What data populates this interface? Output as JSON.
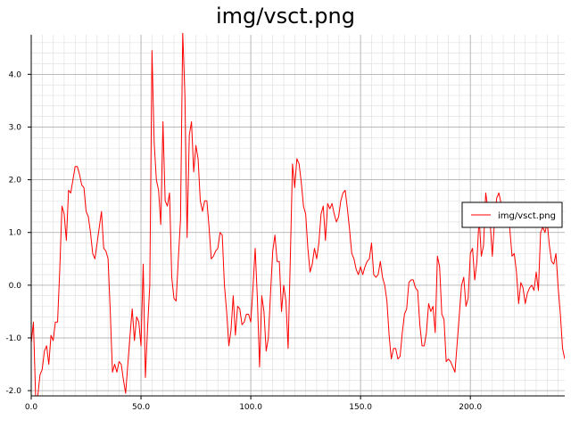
{
  "chart_data": {
    "type": "line",
    "title": "img/vsct.png",
    "xlabel": "",
    "ylabel": "",
    "xlim": [
      0,
      243
    ],
    "ylim": [
      -2.1,
      4.75
    ],
    "x_ticks": [
      0,
      50,
      100,
      150,
      200
    ],
    "x_tick_labels": [
      "0.0",
      "50.0",
      "100.0",
      "150.0",
      "200.0"
    ],
    "y_ticks": [
      -2,
      -1,
      0,
      1,
      2,
      3,
      4
    ],
    "y_tick_labels": [
      "-2.0",
      "-1.0",
      "0.0",
      "1.0",
      "2.0",
      "3.0",
      "4.0"
    ],
    "grid": true,
    "legend_position": "right",
    "series": [
      {
        "name": "img/vsct.png",
        "color": "#ff0000",
        "x_start": 0,
        "x_step": 1,
        "values": [
          -1.1,
          -0.7,
          -2.1,
          -2.1,
          -1.7,
          -1.6,
          -1.25,
          -1.15,
          -1.5,
          -0.95,
          -1.05,
          -0.7,
          -0.7,
          0.3,
          1.5,
          1.35,
          0.85,
          1.8,
          1.75,
          2.0,
          2.25,
          2.25,
          2.1,
          1.9,
          1.85,
          1.4,
          1.3,
          1.0,
          0.6,
          0.5,
          0.8,
          1.1,
          1.4,
          0.7,
          0.65,
          0.5,
          -0.5,
          -1.65,
          -1.5,
          -1.65,
          -1.45,
          -1.5,
          -1.8,
          -2.05,
          -1.5,
          -0.95,
          -0.45,
          -1.05,
          -0.6,
          -0.7,
          -1.15,
          0.4,
          -1.75,
          -0.8,
          0.0,
          4.45,
          2.7,
          2.0,
          1.8,
          1.15,
          3.1,
          1.6,
          1.5,
          1.75,
          0.15,
          -0.25,
          -0.3,
          0.5,
          1.25,
          4.8,
          3.6,
          0.9,
          2.85,
          3.1,
          2.15,
          2.65,
          2.4,
          1.6,
          1.4,
          1.6,
          1.6,
          1.1,
          0.5,
          0.55,
          0.65,
          0.7,
          1.0,
          0.95,
          0.0,
          -0.5,
          -1.15,
          -0.85,
          -0.2,
          -0.95,
          -0.4,
          -0.45,
          -0.75,
          -0.7,
          -0.55,
          -0.55,
          -0.7,
          -0.05,
          0.7,
          -0.25,
          -1.55,
          -0.2,
          -0.5,
          -1.25,
          -1.0,
          -0.15,
          0.65,
          0.95,
          0.45,
          0.45,
          -0.5,
          0.0,
          -0.3,
          -1.2,
          0.5,
          2.3,
          1.85,
          2.4,
          2.3,
          1.95,
          1.5,
          1.35,
          0.7,
          0.25,
          0.4,
          0.7,
          0.5,
          0.8,
          1.35,
          1.5,
          0.85,
          1.55,
          1.45,
          1.55,
          1.35,
          1.2,
          1.3,
          1.6,
          1.75,
          1.8,
          1.45,
          1.05,
          0.6,
          0.5,
          0.3,
          0.2,
          0.35,
          0.2,
          0.35,
          0.45,
          0.5,
          0.8,
          0.2,
          0.15,
          0.2,
          0.45,
          0.15,
          0.0,
          -0.3,
          -0.95,
          -1.4,
          -1.2,
          -1.2,
          -1.4,
          -1.35,
          -0.9,
          -0.55,
          -0.45,
          0.05,
          0.1,
          0.1,
          -0.05,
          -0.1,
          -0.75,
          -1.15,
          -1.15,
          -0.9,
          -0.35,
          -0.5,
          -0.4,
          -0.9,
          0.55,
          0.35,
          -0.55,
          -0.65,
          -1.45,
          -1.4,
          -1.45,
          -1.55,
          -1.65,
          -1.1,
          -0.55,
          0.0,
          0.15,
          -0.4,
          -0.25,
          0.6,
          0.7,
          0.1,
          0.45,
          1.3,
          0.55,
          0.75,
          1.75,
          1.45,
          1.2,
          0.55,
          1.2,
          1.65,
          1.75,
          1.55,
          1.45,
          1.45,
          1.5,
          1.05,
          0.55,
          0.6,
          0.25,
          -0.35,
          0.05,
          -0.05,
          -0.35,
          -0.15,
          -0.05,
          0.0,
          -0.1,
          0.25,
          -0.1,
          1.0,
          1.1,
          1.0,
          1.2,
          0.75,
          0.45,
          0.4,
          0.6,
          -0.05,
          -0.55,
          -1.2,
          -1.4
        ]
      }
    ]
  }
}
